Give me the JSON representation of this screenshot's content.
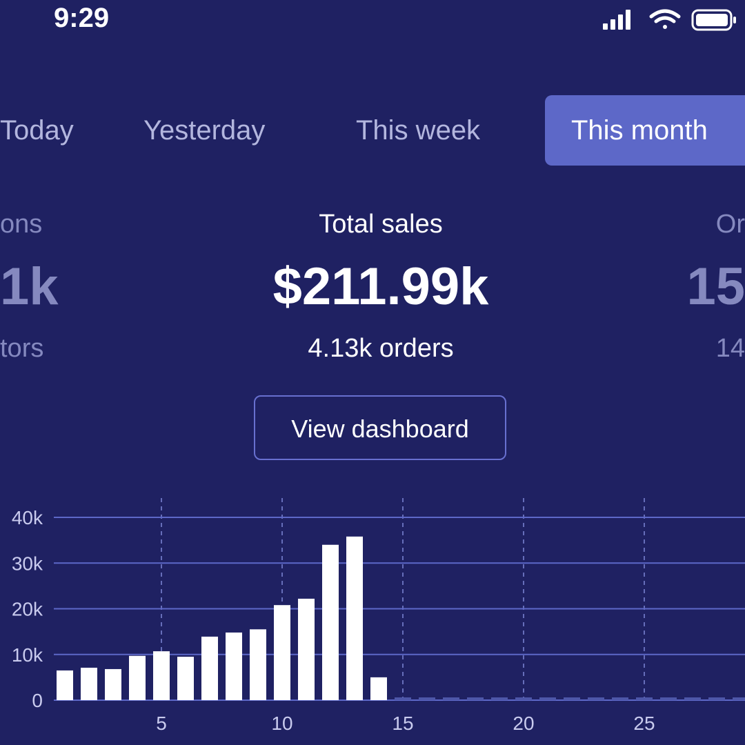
{
  "status_bar": {
    "time": "9:29"
  },
  "tabs": [
    {
      "label": "Today"
    },
    {
      "label": "Yesterday"
    },
    {
      "label": "This week"
    },
    {
      "label": "This month",
      "active": true
    }
  ],
  "stats": {
    "left": {
      "label": "ons",
      "value": "1k",
      "sub": "tors"
    },
    "center": {
      "label": "Total sales",
      "value": "$211.99k",
      "sub": "4.13k orders"
    },
    "right": {
      "label": "Or",
      "value": "15",
      "sub": "14"
    }
  },
  "view_dashboard_label": "View dashboard",
  "colors": {
    "background": "#1f2162",
    "accent": "#5d68c8",
    "bar": "#ffffff",
    "grid": "#5d68c8"
  },
  "chart_data": {
    "type": "bar",
    "title": "",
    "xlabel": "",
    "ylabel": "",
    "x": [
      1,
      2,
      3,
      4,
      5,
      6,
      7,
      8,
      9,
      10,
      11,
      12,
      13,
      14,
      15,
      16,
      17,
      18,
      19,
      20,
      21,
      22,
      23,
      24,
      25,
      26,
      27,
      28,
      29,
      30,
      31
    ],
    "values": [
      6500,
      7100,
      6800,
      9700,
      10700,
      9500,
      13900,
      14800,
      15500,
      20800,
      22200,
      34000,
      35800,
      5000,
      0,
      0,
      0,
      0,
      0,
      0,
      0,
      0,
      0,
      0,
      0,
      0,
      0,
      0,
      0,
      0,
      0
    ],
    "ylim": [
      0,
      40000
    ],
    "yticks": [
      "0",
      "10k",
      "20k",
      "30k",
      "40k"
    ],
    "xticks": [
      "5",
      "10",
      "15",
      "20",
      "25"
    ],
    "grid": true
  }
}
